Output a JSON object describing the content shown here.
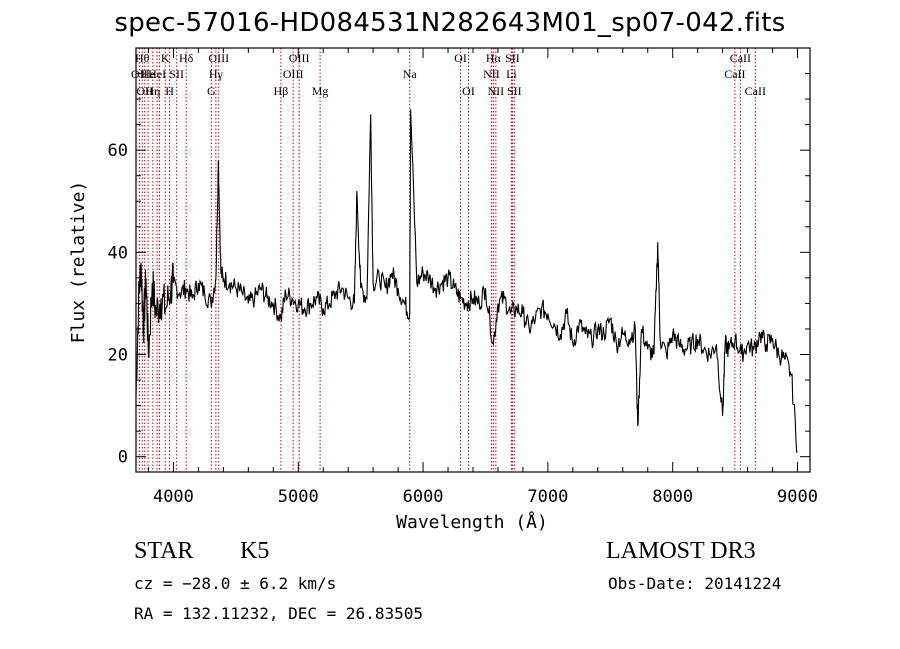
{
  "header": {
    "title": "spec-57016-HD084531N282643M01_sp07-042.fits"
  },
  "chart_data": {
    "type": "line",
    "title": "spec-57016-HD084531N282643M01_sp07-042.fits",
    "xlabel": "Wavelength (Å)",
    "ylabel": "Flux (relative)",
    "xlim": [
      3700,
      9100
    ],
    "ylim": [
      -3,
      80
    ],
    "xticks": [
      4000,
      5000,
      6000,
      7000,
      8000,
      9000
    ],
    "yticks": [
      0,
      20,
      40,
      60
    ],
    "grid": false,
    "series": [
      {
        "x": [
          3700,
          3720,
          3740,
          3760,
          3780,
          3800,
          3830,
          3860,
          3900,
          3940,
          3980,
          4000,
          4050,
          4100,
          4150,
          4200,
          4250,
          4300,
          4340,
          4360,
          4380,
          4400,
          4450,
          4500,
          4550,
          4600,
          4650,
          4700,
          4750,
          4800,
          4861,
          4900,
          4950,
          5000,
          5050,
          5100,
          5150,
          5200,
          5250,
          5300,
          5350,
          5400,
          5450,
          5470,
          5500,
          5550,
          5580,
          5600,
          5650,
          5700,
          5750,
          5800,
          5850,
          5893,
          5900,
          5950,
          6000,
          6050,
          6100,
          6150,
          6200,
          6250,
          6300,
          6350,
          6400,
          6450,
          6500,
          6563,
          6600,
          6650,
          6700,
          6750,
          6800,
          6850,
          6900,
          6950,
          7000,
          7050,
          7100,
          7150,
          7200,
          7250,
          7300,
          7350,
          7400,
          7450,
          7500,
          7550,
          7600,
          7650,
          7700,
          7720,
          7750,
          7800,
          7850,
          7880,
          7900,
          7950,
          8000,
          8050,
          8100,
          8150,
          8200,
          8250,
          8300,
          8350,
          8400,
          8420,
          8450,
          8500,
          8550,
          8600,
          8650,
          8700,
          8750,
          8800,
          8850,
          8900,
          8950,
          9000
        ],
        "y": [
          12,
          30,
          38,
          25,
          35,
          20,
          34,
          28,
          31,
          29,
          33,
          34,
          32,
          33,
          31,
          34,
          32,
          30,
          35,
          58,
          36,
          35,
          34,
          33,
          32,
          30,
          31,
          33,
          31,
          30,
          27,
          32,
          31,
          30,
          29,
          30,
          31,
          29,
          30,
          32,
          33,
          31,
          30,
          52,
          33,
          31,
          67,
          34,
          35,
          33,
          36,
          33,
          30,
          28,
          68,
          34,
          36,
          35,
          33,
          34,
          35,
          33,
          31,
          30,
          31,
          30,
          33,
          22,
          30,
          31,
          28,
          29,
          28,
          25,
          27,
          29,
          28,
          26,
          24,
          28,
          22,
          26,
          24,
          23,
          25,
          24,
          27,
          22,
          24,
          23,
          25,
          6,
          25,
          21,
          20,
          42,
          23,
          20,
          24,
          22,
          21,
          22,
          23,
          21,
          20,
          22,
          8,
          22,
          21,
          23,
          20,
          22,
          21,
          24,
          22,
          23,
          20,
          19,
          16,
          1
        ]
      }
    ],
    "line_markers": [
      {
        "w": 3727,
        "label": "OII",
        "row": 2
      },
      {
        "w": 3750,
        "label": "Hθ",
        "row": 1
      },
      {
        "w": 3770,
        "label": "OII",
        "row": 3
      },
      {
        "w": 3797,
        "label": "He",
        "row": 2
      },
      {
        "w": 3835,
        "label": "Hη",
        "row": 3
      },
      {
        "w": 3869,
        "label": "HeI",
        "row": 2
      },
      {
        "w": 3889,
        "label": "",
        "row": 0
      },
      {
        "w": 3934,
        "label": "K",
        "row": 1
      },
      {
        "w": 3969,
        "label": "H",
        "row": 3
      },
      {
        "w": 4026,
        "label": "SII",
        "row": 2
      },
      {
        "w": 4102,
        "label": "Hδ",
        "row": 1
      },
      {
        "w": 4304,
        "label": "G",
        "row": 3
      },
      {
        "w": 4340,
        "label": "Hγ",
        "row": 2
      },
      {
        "w": 4363,
        "label": "OIII",
        "row": 1
      },
      {
        "w": 4861,
        "label": "Hβ",
        "row": 3
      },
      {
        "w": 4959,
        "label": "OIII",
        "row": 2
      },
      {
        "w": 5007,
        "label": "OIII",
        "row": 1
      },
      {
        "w": 5175,
        "label": "Mg",
        "row": 3
      },
      {
        "w": 5893,
        "label": "Na",
        "row": 2
      },
      {
        "w": 6300,
        "label": "OI",
        "row": 1
      },
      {
        "w": 6364,
        "label": "OI",
        "row": 3
      },
      {
        "w": 6548,
        "label": "NII",
        "row": 2
      },
      {
        "w": 6563,
        "label": "Hα",
        "row": 1
      },
      {
        "w": 6583,
        "label": "NII",
        "row": 3
      },
      {
        "w": 6708,
        "label": "Li",
        "row": 2
      },
      {
        "w": 6716,
        "label": "SII",
        "row": 1
      },
      {
        "w": 6731,
        "label": "SII",
        "row": 3
      },
      {
        "w": 8498,
        "label": "CaII",
        "row": 2
      },
      {
        "w": 8542,
        "label": "CaII",
        "row": 1
      },
      {
        "w": 8662,
        "label": "CaII",
        "row": 3
      }
    ]
  },
  "info": {
    "class": "STAR",
    "subclass": "K5",
    "survey": "LAMOST DR3",
    "cz": "cz = −28.0 ± 6.2 km/s",
    "obs_date": "Obs-Date: 20141224",
    "radec": "RA = 132.11232, DEC =  26.83505"
  },
  "colors": {
    "line": "#000000",
    "marker": "#cc0000",
    "axis": "#000000"
  }
}
